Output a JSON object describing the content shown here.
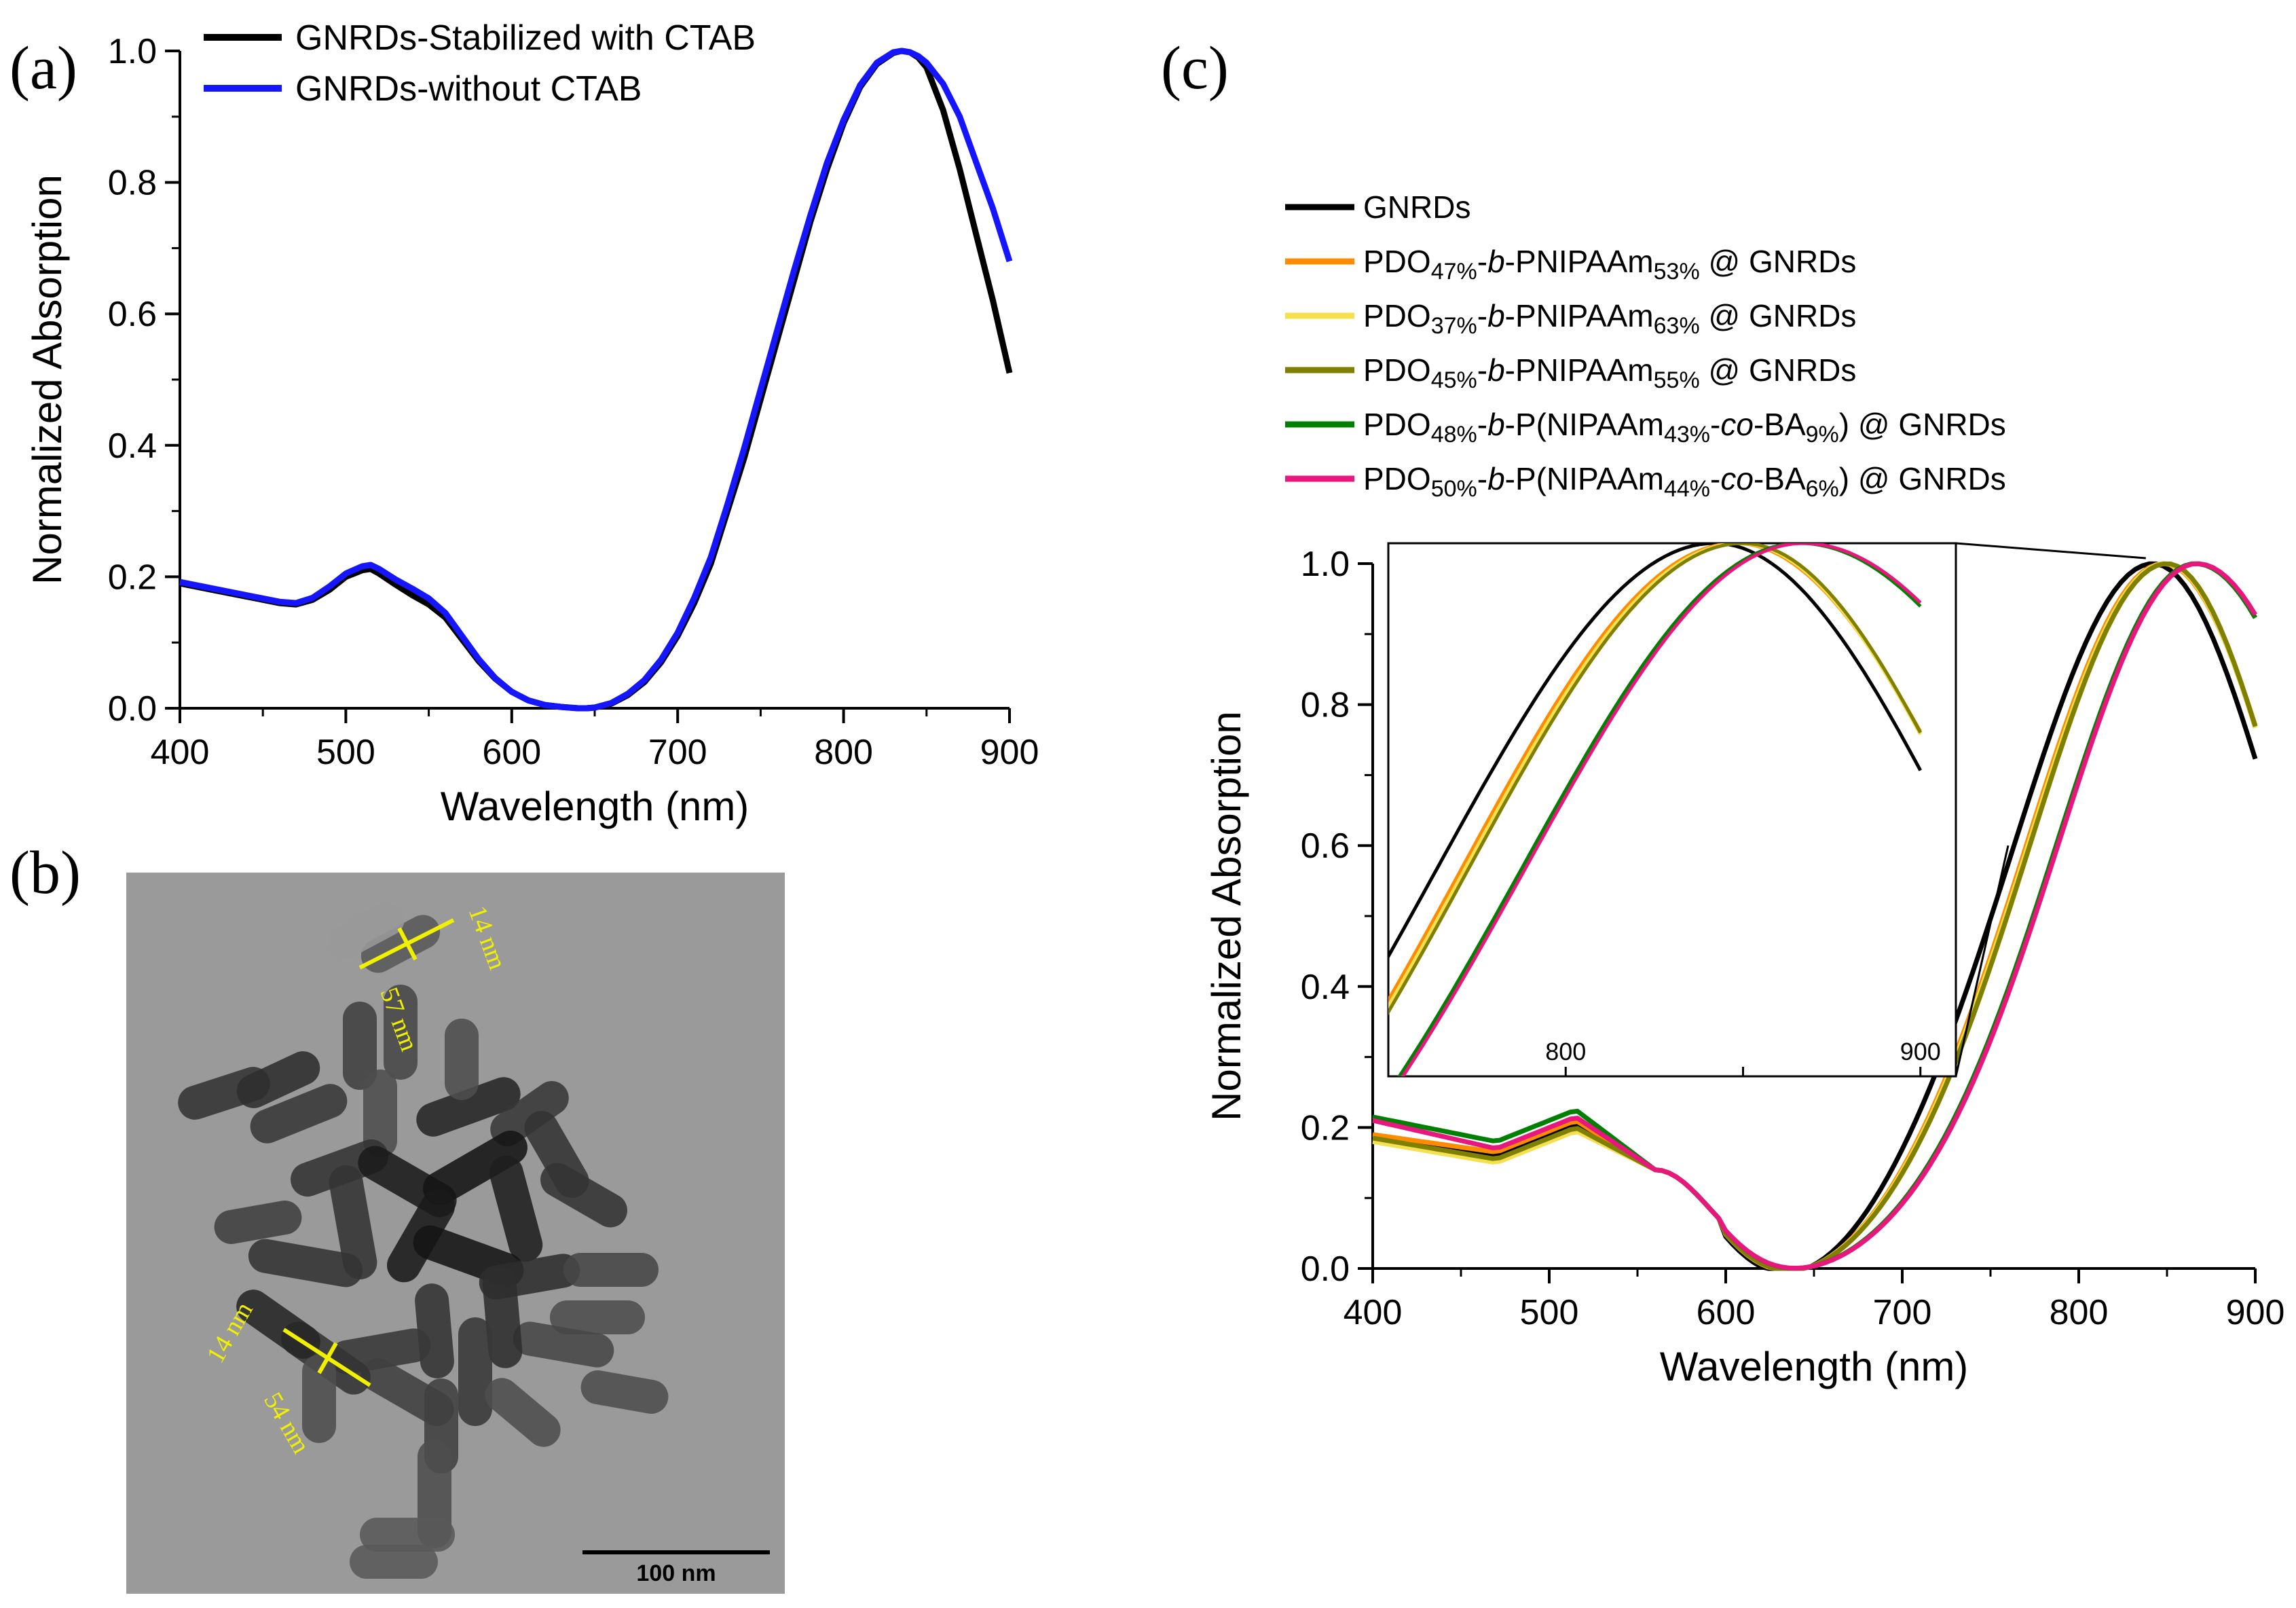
{
  "panels": {
    "a": "(a)",
    "b": "(b)",
    "c": "(c)"
  },
  "tem": {
    "scale_bar_label": "100 nm",
    "annotations": [
      "14 nm",
      "57 nm",
      "14 nm",
      "54 nm"
    ]
  },
  "colors": {
    "black": "#000000",
    "blue": "#1515ff",
    "orange": "#ff8c00",
    "lightyellow": "#f5e050",
    "olive": "#808000",
    "green": "#008000",
    "pink": "#e8177d"
  },
  "chart_data": [
    {
      "id": "a",
      "type": "line",
      "title": "",
      "xlabel": "Wavelength (nm)",
      "ylabel": "Normalized Absorption",
      "xlim": [
        400,
        900
      ],
      "ylim": [
        0,
        1.0
      ],
      "xticks": [
        400,
        500,
        600,
        700,
        800,
        900
      ],
      "yticks": [
        0.0,
        0.2,
        0.4,
        0.6,
        0.8,
        1.0
      ],
      "legend_position": "top-left",
      "series": [
        {
          "name": "GNRDs-Stabilized with CTAB",
          "color": "#000000",
          "x": [
            400,
            420,
            440,
            460,
            470,
            480,
            490,
            500,
            510,
            515,
            520,
            530,
            540,
            550,
            560,
            570,
            580,
            590,
            600,
            610,
            620,
            630,
            640,
            645,
            650,
            660,
            670,
            680,
            690,
            700,
            710,
            720,
            730,
            740,
            750,
            760,
            770,
            780,
            790,
            800,
            810,
            820,
            830,
            835,
            840,
            845,
            850,
            860,
            870,
            880,
            890,
            900
          ],
          "y": [
            0.19,
            0.18,
            0.17,
            0.16,
            0.158,
            0.165,
            0.18,
            0.2,
            0.21,
            0.212,
            0.205,
            0.188,
            0.172,
            0.158,
            0.138,
            0.105,
            0.072,
            0.045,
            0.025,
            0.012,
            0.005,
            0.002,
            0.0,
            0.0,
            0.001,
            0.007,
            0.02,
            0.04,
            0.07,
            0.11,
            0.16,
            0.22,
            0.3,
            0.38,
            0.47,
            0.56,
            0.65,
            0.74,
            0.82,
            0.89,
            0.945,
            0.98,
            0.997,
            1.0,
            0.998,
            0.99,
            0.975,
            0.91,
            0.82,
            0.72,
            0.62,
            0.51
          ]
        },
        {
          "name": "GNRDs-without CTAB",
          "color": "#1515ff",
          "x": [
            400,
            420,
            440,
            460,
            470,
            480,
            490,
            500,
            510,
            515,
            520,
            530,
            540,
            550,
            560,
            570,
            580,
            590,
            600,
            610,
            620,
            630,
            640,
            645,
            650,
            660,
            670,
            680,
            690,
            700,
            710,
            720,
            730,
            740,
            750,
            760,
            770,
            780,
            790,
            800,
            810,
            820,
            830,
            835,
            840,
            845,
            850,
            860,
            870,
            880,
            890,
            900
          ],
          "y": [
            0.192,
            0.182,
            0.172,
            0.162,
            0.16,
            0.168,
            0.185,
            0.205,
            0.216,
            0.218,
            0.212,
            0.196,
            0.182,
            0.167,
            0.145,
            0.11,
            0.075,
            0.046,
            0.025,
            0.012,
            0.005,
            0.002,
            0.0,
            0.0,
            0.001,
            0.008,
            0.022,
            0.043,
            0.074,
            0.115,
            0.168,
            0.23,
            0.31,
            0.395,
            0.485,
            0.575,
            0.665,
            0.75,
            0.83,
            0.895,
            0.948,
            0.982,
            0.998,
            1.0,
            0.998,
            0.992,
            0.982,
            0.95,
            0.9,
            0.83,
            0.76,
            0.68
          ]
        }
      ]
    },
    {
      "id": "c",
      "type": "line",
      "title": "",
      "xlabel": "Wavelength (nm)",
      "ylabel": "Normalized Absorption",
      "xlim": [
        400,
        900
      ],
      "ylim": [
        0,
        1.0
      ],
      "xticks": [
        400,
        500,
        600,
        700,
        800,
        900
      ],
      "yticks": [
        0.0,
        0.2,
        0.4,
        0.6,
        0.8,
        1.0
      ],
      "legend_position": "above plot",
      "legend": [
        {
          "main": "GNRDs",
          "rich": [
            [
              "n",
              "GNRDs"
            ]
          ],
          "color": "#000000"
        },
        {
          "main": "PDO47%-b-PNIPAAm53% @ GNRDs",
          "rich": [
            [
              "n",
              "PDO"
            ],
            [
              "s",
              "47%"
            ],
            [
              "n",
              "-"
            ],
            [
              "i",
              "b"
            ],
            [
              "n",
              "-PNIPAAm"
            ],
            [
              "s",
              "53%"
            ],
            [
              "n",
              " @ GNRDs"
            ]
          ],
          "color": "#ff8c00"
        },
        {
          "main": "PDO37%-b-PNIPAAm63% @ GNRDs",
          "rich": [
            [
              "n",
              "PDO"
            ],
            [
              "s",
              "37%"
            ],
            [
              "n",
              "-"
            ],
            [
              "i",
              "b"
            ],
            [
              "n",
              "-PNIPAAm"
            ],
            [
              "s",
              "63%"
            ],
            [
              "n",
              " @ GNRDs"
            ]
          ],
          "color": "#f5e050"
        },
        {
          "main": "PDO45%-b-PNIPAAm55% @ GNRDs",
          "rich": [
            [
              "n",
              "PDO"
            ],
            [
              "s",
              "45%"
            ],
            [
              "n",
              "-"
            ],
            [
              "i",
              "b"
            ],
            [
              "n",
              "-PNIPAAm"
            ],
            [
              "s",
              "55%"
            ],
            [
              "n",
              " @ GNRDs"
            ]
          ],
          "color": "#808000"
        },
        {
          "main": "PDO48%-b-P(NIPAAm43%-co-BA9%) @ GNRDs",
          "rich": [
            [
              "n",
              "PDO"
            ],
            [
              "s",
              "48%"
            ],
            [
              "n",
              "-"
            ],
            [
              "i",
              "b"
            ],
            [
              "n",
              "-P(NIPAAm"
            ],
            [
              "s",
              "43%"
            ],
            [
              "n",
              "-"
            ],
            [
              "i",
              "co"
            ],
            [
              "n",
              "-BA"
            ],
            [
              "s",
              "9%"
            ],
            [
              "n",
              ") @ GNRDs"
            ]
          ],
          "color": "#008000"
        },
        {
          "main": "PDO50%-b-P(NIPAAm44%-co-BA6%) @ GNRDs",
          "rich": [
            [
              "n",
              "PDO"
            ],
            [
              "s",
              "50%"
            ],
            [
              "n",
              "-"
            ],
            [
              "i",
              "b"
            ],
            [
              "n",
              "-P(NIPAAm"
            ],
            [
              "s",
              "44%"
            ],
            [
              "n",
              "-"
            ],
            [
              "i",
              "co"
            ],
            [
              "n",
              "-BA"
            ],
            [
              "s",
              "6%"
            ],
            [
              "n",
              ") @ GNRDs"
            ]
          ],
          "color": "#e8177d"
        }
      ],
      "series": [
        {
          "name": "GNRDs",
          "color": "#000000",
          "peak": 842,
          "left_sigma": 78,
          "right_sigma": 72,
          "base_shift": 0,
          "small_peak": 0.205,
          "start": 0.19
        },
        {
          "name": "PDO47%-b-PNIPAAm53% @ GNRDs",
          "color": "#ff8c00",
          "peak": 848,
          "left_sigma": 77,
          "right_sigma": 72,
          "base_shift": 0,
          "small_peak": 0.21,
          "start": 0.19
        },
        {
          "name": "PDO37%-b-PNIPAAm63% @ GNRDs",
          "color": "#f5e050",
          "peak": 849,
          "left_sigma": 77,
          "right_sigma": 70,
          "base_shift": 0,
          "small_peak": 0.195,
          "start": 0.18
        },
        {
          "name": "PDO45%-b-PNIPAAm55% @ GNRDs",
          "color": "#808000",
          "peak": 850,
          "left_sigma": 77,
          "right_sigma": 69,
          "base_shift": 0,
          "small_peak": 0.2,
          "start": 0.185
        },
        {
          "name": "PDO48%-b-P(NIPAAm43%-co-BA9%) @ GNRDs",
          "color": "#008000",
          "peak": 866,
          "left_sigma": 78,
          "right_sigma": 85,
          "base_shift": 0,
          "small_peak": 0.225,
          "start": 0.215
        },
        {
          "name": "PDO50%-b-P(NIPAAm44%-co-BA6%) @ GNRDs",
          "color": "#e8177d",
          "peak": 867,
          "left_sigma": 78,
          "right_sigma": 85,
          "base_shift": 0,
          "small_peak": 0.215,
          "start": 0.21
        }
      ],
      "inset": {
        "xlim": [
          750,
          910
        ],
        "ylim": [
          0.35,
          1.0
        ],
        "xticks": [
          800,
          900
        ]
      }
    }
  ]
}
